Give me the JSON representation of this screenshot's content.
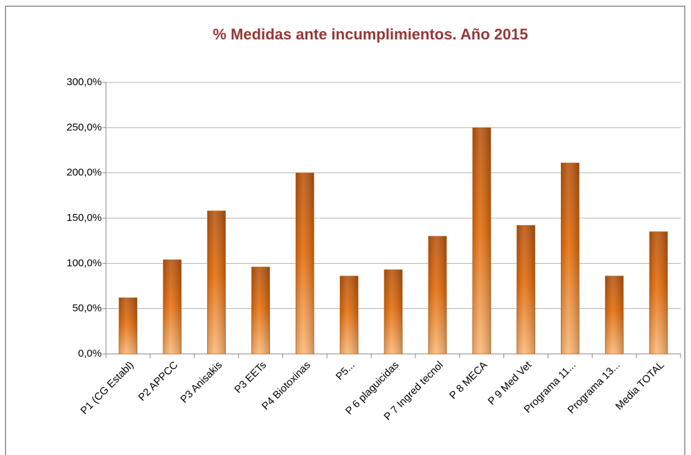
{
  "chart_data": {
    "type": "bar",
    "title": "% Medidas ante incumplimientos. Año 2015",
    "categories": [
      "P1 (CG Establ)",
      "P2 APPCC",
      "P3 Anisakis",
      "P3 EETs",
      "P4 Biotoxinas",
      "P5...",
      "P 6 plaguicidas",
      "P 7 Ingred tecnol",
      "P 8 MECA",
      "P 9 Med Vet",
      "Programa 11...",
      "Programa 13...",
      "Media TOTAL"
    ],
    "values": [
      62,
      104,
      158,
      96,
      200,
      86,
      93,
      130,
      250,
      142,
      211,
      86,
      135
    ],
    "color": "#e46c0a",
    "ylim": [
      0,
      300
    ],
    "yticks": [
      {
        "value": 0,
        "label": "0,0%"
      },
      {
        "value": 50,
        "label": "50,0%"
      },
      {
        "value": 100,
        "label": "100,0%"
      },
      {
        "value": 150,
        "label": "150,0%"
      },
      {
        "value": 200,
        "label": "200,0%"
      },
      {
        "value": 250,
        "label": "250,0%"
      },
      {
        "value": 300,
        "label": "300,0%"
      }
    ],
    "grid": true
  }
}
